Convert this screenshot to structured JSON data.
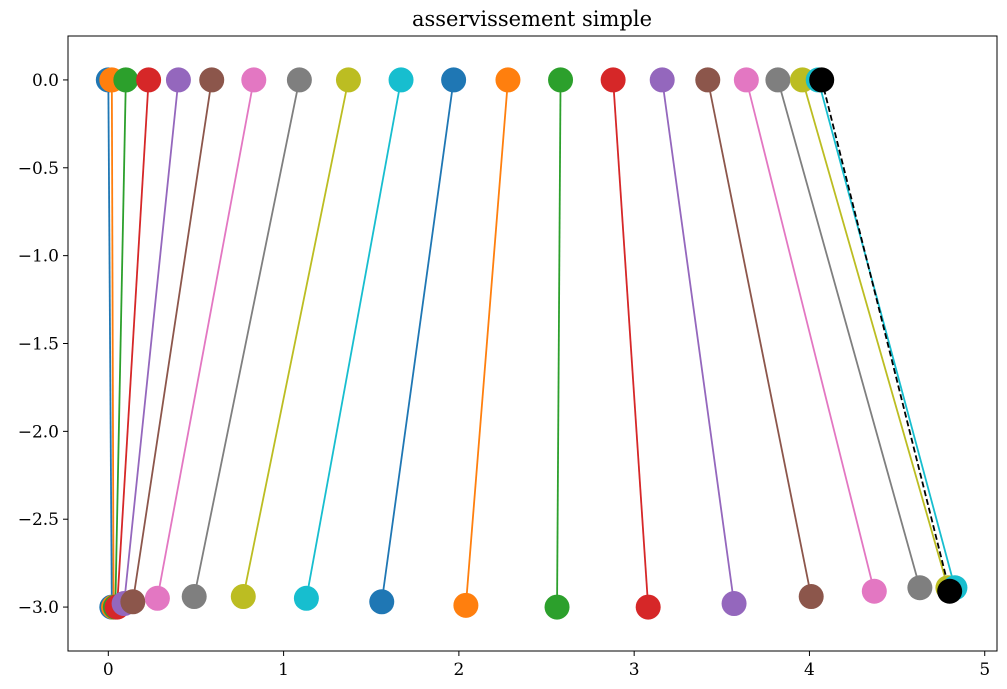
{
  "chart_data": {
    "type": "line",
    "title": "asservissement simple",
    "xlabel": "",
    "ylabel": "",
    "xlim": [
      -0.23,
      5.07
    ],
    "ylim": [
      -3.25,
      0.25
    ],
    "grid": false,
    "legend": "none",
    "x_ticks": [
      {
        "value": 0,
        "label": "0"
      },
      {
        "value": 1,
        "label": "1"
      },
      {
        "value": 2,
        "label": "2"
      },
      {
        "value": 3,
        "label": "3"
      },
      {
        "value": 4,
        "label": "4"
      },
      {
        "value": 5,
        "label": "5"
      }
    ],
    "y_ticks": [
      {
        "value": 0.0,
        "label": "0.0"
      },
      {
        "value": -0.5,
        "label": "−0.5"
      },
      {
        "value": -1.0,
        "label": "−1.0"
      },
      {
        "value": -1.5,
        "label": "−1.5"
      },
      {
        "value": -2.0,
        "label": "−2.0"
      },
      {
        "value": -2.5,
        "label": "−2.5"
      },
      {
        "value": -3.0,
        "label": "−3.0"
      }
    ],
    "series": [
      {
        "color": "#1f77b4",
        "x": [
          0.0,
          0.02
        ],
        "y": [
          0.0,
          -3.0
        ]
      },
      {
        "color": "#ff7f0e",
        "x": [
          0.02,
          0.03
        ],
        "y": [
          0.0,
          -3.0
        ]
      },
      {
        "color": "#2ca02c",
        "x": [
          0.1,
          0.04
        ],
        "y": [
          0.0,
          -3.0
        ]
      },
      {
        "color": "#d62728",
        "x": [
          0.23,
          0.05
        ],
        "y": [
          0.0,
          -3.0
        ]
      },
      {
        "color": "#9467bd",
        "x": [
          0.4,
          0.09
        ],
        "y": [
          0.0,
          -2.98
        ]
      },
      {
        "color": "#8c564b",
        "x": [
          0.59,
          0.14
        ],
        "y": [
          0.0,
          -2.97
        ]
      },
      {
        "color": "#e377c2",
        "x": [
          0.83,
          0.28
        ],
        "y": [
          0.0,
          -2.95
        ]
      },
      {
        "color": "#7f7f7f",
        "x": [
          1.09,
          0.49
        ],
        "y": [
          0.0,
          -2.94
        ]
      },
      {
        "color": "#bcbd22",
        "x": [
          1.37,
          0.77
        ],
        "y": [
          0.0,
          -2.94
        ]
      },
      {
        "color": "#17becf",
        "x": [
          1.67,
          1.13
        ],
        "y": [
          0.0,
          -2.95
        ]
      },
      {
        "color": "#1f77b4",
        "x": [
          1.97,
          1.56
        ],
        "y": [
          0.0,
          -2.97
        ]
      },
      {
        "color": "#ff7f0e",
        "x": [
          2.28,
          2.04
        ],
        "y": [
          0.0,
          -2.99
        ]
      },
      {
        "color": "#2ca02c",
        "x": [
          2.58,
          2.56
        ],
        "y": [
          0.0,
          -3.0
        ]
      },
      {
        "color": "#d62728",
        "x": [
          2.88,
          3.08
        ],
        "y": [
          0.0,
          -3.0
        ]
      },
      {
        "color": "#9467bd",
        "x": [
          3.16,
          3.57
        ],
        "y": [
          0.0,
          -2.98
        ]
      },
      {
        "color": "#8c564b",
        "x": [
          3.42,
          4.01
        ],
        "y": [
          0.0,
          -2.94
        ]
      },
      {
        "color": "#e377c2",
        "x": [
          3.64,
          4.37
        ],
        "y": [
          0.0,
          -2.91
        ]
      },
      {
        "color": "#7f7f7f",
        "x": [
          3.82,
          4.63
        ],
        "y": [
          0.0,
          -2.89
        ]
      },
      {
        "color": "#bcbd22",
        "x": [
          3.96,
          4.79
        ],
        "y": [
          0.0,
          -2.89
        ]
      },
      {
        "color": "#17becf",
        "x": [
          4.05,
          4.83
        ],
        "y": [
          0.0,
          -2.89
        ]
      }
    ],
    "reference": {
      "color": "#000000",
      "style": "dashed",
      "x": [
        4.07,
        4.8
      ],
      "y": [
        0.0,
        -2.91
      ]
    }
  }
}
